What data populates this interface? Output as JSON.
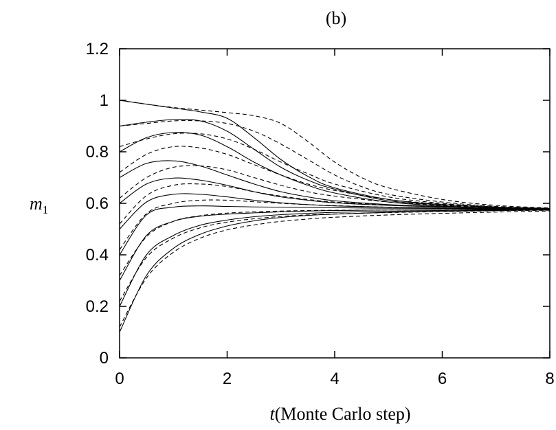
{
  "chart_data": {
    "type": "line",
    "title": "(b)",
    "xlabel": {
      "var": "t",
      "text": "(Monte Carlo step)"
    },
    "ylabel": {
      "base": "m",
      "sub": "1"
    },
    "xlim": [
      0,
      8
    ],
    "ylim": [
      0,
      1.2
    ],
    "xticks": [
      "0",
      "2",
      "4",
      "6",
      "8"
    ],
    "yticks": [
      "0",
      "0.2",
      "0.4",
      "0.6",
      "0.8",
      "1",
      "1.2"
    ],
    "grid": false,
    "legend": "none",
    "series": [
      {
        "style": "solid",
        "x": [
          0,
          0.5,
          1,
          1.5,
          2,
          2.5,
          3,
          3.5,
          4,
          5,
          6,
          7,
          8
        ],
        "y": [
          1.0,
          0.985,
          0.97,
          0.955,
          0.93,
          0.855,
          0.77,
          0.705,
          0.66,
          0.615,
          0.595,
          0.585,
          0.58
        ]
      },
      {
        "style": "solid",
        "x": [
          0,
          0.5,
          1,
          1.5,
          2,
          2.5,
          3,
          3.5,
          4,
          5,
          6,
          7,
          8
        ],
        "y": [
          0.9,
          0.915,
          0.925,
          0.92,
          0.88,
          0.81,
          0.74,
          0.69,
          0.655,
          0.61,
          0.595,
          0.585,
          0.58
        ]
      },
      {
        "style": "solid",
        "x": [
          0,
          0.5,
          1,
          1.5,
          2,
          2.5,
          3,
          3.5,
          4,
          5,
          6,
          7,
          8
        ],
        "y": [
          0.8,
          0.855,
          0.875,
          0.865,
          0.82,
          0.76,
          0.71,
          0.67,
          0.64,
          0.605,
          0.59,
          0.582,
          0.578
        ]
      },
      {
        "style": "solid",
        "x": [
          0,
          0.5,
          1,
          1.5,
          2,
          2.5,
          3,
          3.5,
          4,
          5,
          6,
          7,
          8
        ],
        "y": [
          0.7,
          0.755,
          0.765,
          0.745,
          0.71,
          0.675,
          0.645,
          0.625,
          0.61,
          0.595,
          0.588,
          0.582,
          0.578
        ]
      },
      {
        "style": "solid",
        "x": [
          0,
          0.5,
          1,
          1.5,
          2,
          2.5,
          3,
          3.5,
          4,
          5,
          6,
          7,
          8
        ],
        "y": [
          0.6,
          0.675,
          0.698,
          0.69,
          0.67,
          0.645,
          0.625,
          0.612,
          0.602,
          0.592,
          0.586,
          0.582,
          0.578
        ]
      },
      {
        "style": "solid",
        "x": [
          0,
          0.5,
          1,
          1.5,
          2,
          2.5,
          3,
          3.5,
          4,
          5,
          6,
          7,
          8
        ],
        "y": [
          0.5,
          0.605,
          0.635,
          0.635,
          0.625,
          0.612,
          0.602,
          0.595,
          0.59,
          0.585,
          0.582,
          0.58,
          0.577
        ]
      },
      {
        "style": "solid",
        "x": [
          0,
          0.5,
          1,
          1.5,
          2,
          2.5,
          3,
          3.5,
          4,
          5,
          6,
          7,
          8
        ],
        "y": [
          0.4,
          0.555,
          0.585,
          0.59,
          0.588,
          0.586,
          0.585,
          0.584,
          0.583,
          0.581,
          0.58,
          0.578,
          0.577
        ]
      },
      {
        "style": "solid",
        "x": [
          0,
          0.5,
          1,
          1.5,
          2,
          2.5,
          3,
          3.5,
          4,
          5,
          6,
          7,
          8
        ],
        "y": [
          0.3,
          0.475,
          0.53,
          0.55,
          0.558,
          0.563,
          0.567,
          0.57,
          0.572,
          0.574,
          0.575,
          0.576,
          0.576
        ]
      },
      {
        "style": "solid",
        "x": [
          0,
          0.5,
          1,
          1.5,
          2,
          2.5,
          3,
          3.5,
          4,
          5,
          6,
          7,
          8
        ],
        "y": [
          0.2,
          0.4,
          0.475,
          0.515,
          0.535,
          0.548,
          0.556,
          0.561,
          0.565,
          0.569,
          0.572,
          0.574,
          0.575
        ]
      },
      {
        "style": "solid",
        "x": [
          0,
          0.5,
          1,
          1.5,
          2,
          2.5,
          3,
          3.5,
          4,
          5,
          6,
          7,
          8
        ],
        "y": [
          0.1,
          0.32,
          0.425,
          0.48,
          0.512,
          0.532,
          0.545,
          0.553,
          0.558,
          0.565,
          0.569,
          0.572,
          0.574
        ]
      },
      {
        "style": "dashed",
        "x": [
          0,
          0.5,
          1,
          1.5,
          2,
          2.5,
          3,
          3.5,
          4,
          4.5,
          5,
          6,
          7,
          8
        ],
        "y": [
          1.0,
          0.985,
          0.972,
          0.962,
          0.952,
          0.94,
          0.91,
          0.84,
          0.76,
          0.7,
          0.66,
          0.615,
          0.592,
          0.582
        ]
      },
      {
        "style": "dashed",
        "x": [
          0,
          0.5,
          1,
          1.5,
          2,
          2.5,
          3,
          3.5,
          4,
          4.5,
          5,
          6,
          7,
          8
        ],
        "y": [
          0.9,
          0.91,
          0.92,
          0.92,
          0.91,
          0.88,
          0.83,
          0.77,
          0.71,
          0.665,
          0.635,
          0.605,
          0.588,
          0.58
        ]
      },
      {
        "style": "dashed",
        "x": [
          0,
          0.5,
          1,
          1.5,
          2,
          2.5,
          3,
          3.5,
          4,
          5,
          6,
          7,
          8
        ],
        "y": [
          0.82,
          0.85,
          0.87,
          0.87,
          0.85,
          0.81,
          0.76,
          0.715,
          0.675,
          0.625,
          0.6,
          0.586,
          0.58
        ]
      },
      {
        "style": "dashed",
        "x": [
          0,
          0.5,
          1,
          1.5,
          2,
          2.5,
          3,
          3.5,
          4,
          5,
          6,
          7,
          8
        ],
        "y": [
          0.72,
          0.79,
          0.82,
          0.815,
          0.79,
          0.75,
          0.71,
          0.675,
          0.65,
          0.615,
          0.597,
          0.585,
          0.579
        ]
      },
      {
        "style": "dashed",
        "x": [
          0,
          0.5,
          1,
          1.5,
          2,
          2.5,
          3,
          3.5,
          4,
          5,
          6,
          7,
          8
        ],
        "y": [
          0.62,
          0.7,
          0.74,
          0.745,
          0.73,
          0.7,
          0.67,
          0.645,
          0.628,
          0.605,
          0.592,
          0.584,
          0.578
        ]
      },
      {
        "style": "dashed",
        "x": [
          0,
          0.5,
          1,
          1.5,
          2,
          2.5,
          3,
          3.5,
          4,
          5,
          6,
          7,
          8
        ],
        "y": [
          0.52,
          0.63,
          0.67,
          0.675,
          0.665,
          0.645,
          0.628,
          0.615,
          0.605,
          0.594,
          0.587,
          0.582,
          0.578
        ]
      },
      {
        "style": "dashed",
        "x": [
          0,
          0.5,
          1,
          1.5,
          2,
          2.5,
          3,
          3.5,
          4,
          5,
          6,
          7,
          8
        ],
        "y": [
          0.42,
          0.56,
          0.6,
          0.612,
          0.612,
          0.606,
          0.6,
          0.595,
          0.591,
          0.585,
          0.582,
          0.579,
          0.577
        ]
      },
      {
        "style": "dashed",
        "x": [
          0,
          0.5,
          1,
          1.5,
          2,
          2.5,
          3,
          3.5,
          4,
          5,
          6,
          7,
          8
        ],
        "y": [
          0.32,
          0.47,
          0.53,
          0.552,
          0.562,
          0.567,
          0.57,
          0.572,
          0.573,
          0.574,
          0.575,
          0.576,
          0.576
        ]
      },
      {
        "style": "dashed",
        "x": [
          0,
          0.5,
          1,
          1.5,
          2,
          2.5,
          3,
          3.5,
          4,
          5,
          6,
          7,
          8
        ],
        "y": [
          0.22,
          0.39,
          0.465,
          0.505,
          0.527,
          0.54,
          0.549,
          0.555,
          0.559,
          0.564,
          0.568,
          0.571,
          0.573
        ]
      },
      {
        "style": "dashed",
        "x": [
          0,
          0.5,
          1,
          1.5,
          2,
          2.5,
          3,
          3.5,
          4,
          5,
          6,
          7,
          8
        ],
        "y": [
          0.12,
          0.31,
          0.41,
          0.465,
          0.497,
          0.516,
          0.53,
          0.539,
          0.546,
          0.555,
          0.561,
          0.566,
          0.57
        ]
      }
    ]
  }
}
